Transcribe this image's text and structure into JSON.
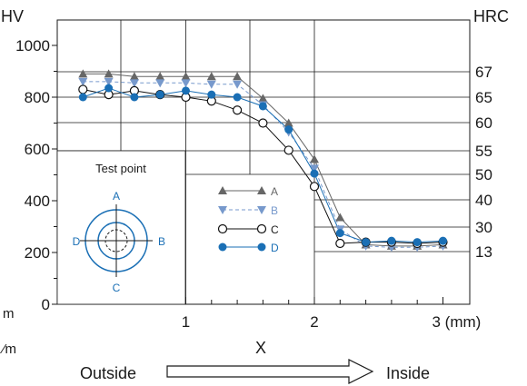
{
  "chart_data": {
    "type": "line",
    "y_left_label": "HV",
    "y_right_label": "HRC",
    "y_left_ticks": [
      "0",
      "200",
      "400",
      "600",
      "800",
      "1000"
    ],
    "y_left_tick_values": [
      0,
      200,
      400,
      600,
      800,
      1000
    ],
    "y_right_ticks": [
      {
        "label": "67",
        "hv": 900
      },
      {
        "label": "65",
        "hv": 830
      },
      {
        "label": "60",
        "hv": 700
      },
      {
        "label": "55",
        "hv": 600
      },
      {
        "label": "50",
        "hv": 510
      },
      {
        "label": "40",
        "hv": 390
      },
      {
        "label": "30",
        "hv": 300
      },
      {
        "label": "13",
        "hv": 200
      }
    ],
    "x_ticks": [
      "1",
      "2",
      "3 (mm)"
    ],
    "x_tick_values": [
      1,
      2,
      3
    ],
    "xlim": [
      0,
      3
    ],
    "ylim": [
      0,
      1000
    ],
    "x_label": "X",
    "left_cut_labels": [
      "m",
      "⁄m"
    ],
    "direction": {
      "outside": "Outside",
      "inside": "Inside"
    },
    "inset": {
      "title": "Test point",
      "points": [
        "A",
        "B",
        "C",
        "D"
      ]
    },
    "series": [
      {
        "name": "A",
        "marker": "triangle-up",
        "color": "#666666",
        "line": "solid",
        "x": [
          0.2,
          0.4,
          0.6,
          0.8,
          1.0,
          1.2,
          1.4,
          1.6,
          1.8,
          2.0,
          2.2,
          2.4,
          2.6,
          2.8,
          3.0
        ],
        "y": [
          890,
          890,
          880,
          880,
          880,
          880,
          880,
          795,
          700,
          560,
          335,
          230,
          225,
          225,
          230
        ]
      },
      {
        "name": "B",
        "marker": "triangle-down",
        "color": "#7799cc",
        "line": "dashed",
        "x": [
          0.2,
          0.4,
          0.6,
          0.8,
          1.0,
          1.2,
          1.4,
          1.6,
          1.8,
          2.0,
          2.2,
          2.4,
          2.6,
          2.8,
          3.0
        ],
        "y": [
          860,
          860,
          855,
          855,
          855,
          850,
          850,
          770,
          665,
          525,
          290,
          225,
          220,
          220,
          225
        ]
      },
      {
        "name": "C",
        "marker": "circle-open",
        "color": "#111111",
        "line": "solid",
        "x": [
          0.2,
          0.4,
          0.6,
          0.8,
          1.0,
          1.2,
          1.4,
          1.6,
          1.8,
          2.0,
          2.2,
          2.4,
          2.6,
          2.8,
          3.0
        ],
        "y": [
          830,
          810,
          825,
          810,
          800,
          785,
          750,
          700,
          595,
          455,
          235,
          240,
          240,
          235,
          240
        ]
      },
      {
        "name": "D",
        "marker": "circle-filled",
        "color": "#1a6fb5",
        "line": "solid",
        "x": [
          0.2,
          0.4,
          0.6,
          0.8,
          1.0,
          1.2,
          1.4,
          1.6,
          1.8,
          2.0,
          2.2,
          2.4,
          2.6,
          2.8,
          3.0
        ],
        "y": [
          800,
          835,
          800,
          810,
          825,
          810,
          800,
          765,
          675,
          505,
          275,
          240,
          245,
          240,
          245
        ]
      }
    ]
  }
}
